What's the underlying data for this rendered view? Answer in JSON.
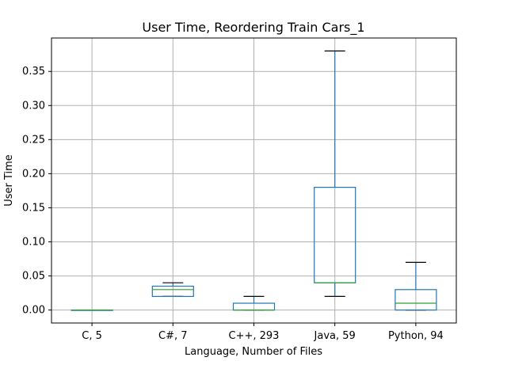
{
  "chart_data": {
    "type": "box",
    "title": "User Time, Reordering Train Cars_1",
    "xlabel": "Language, Number of Files",
    "ylabel": "User Time",
    "ylim": [
      -0.019,
      0.399
    ],
    "yticks": [
      "0.00",
      "0.05",
      "0.10",
      "0.15",
      "0.20",
      "0.25",
      "0.30",
      "0.35"
    ],
    "grid": true,
    "categories": [
      "C, 5",
      "C#, 7",
      "C++, 293",
      "Java, 59",
      "Python, 94"
    ],
    "boxes": [
      {
        "category": "C, 5",
        "whisker_low": 0.0,
        "q1": 0.0,
        "median": 0.0,
        "q3": 0.0,
        "whisker_high": 0.0
      },
      {
        "category": "C#, 7",
        "whisker_low": 0.02,
        "q1": 0.02,
        "median": 0.03,
        "q3": 0.035,
        "whisker_high": 0.04
      },
      {
        "category": "C++, 293",
        "whisker_low": 0.0,
        "q1": 0.0,
        "median": 0.0,
        "q3": 0.01,
        "whisker_high": 0.02
      },
      {
        "category": "Java, 59",
        "whisker_low": 0.02,
        "q1": 0.04,
        "median": 0.04,
        "q3": 0.18,
        "whisker_high": 0.38
      },
      {
        "category": "Python, 94",
        "whisker_low": 0.0,
        "q1": 0.0,
        "median": 0.01,
        "q3": 0.03,
        "whisker_high": 0.07
      }
    ],
    "colors": {
      "box": "#1f77b4",
      "median": "#2ca02c",
      "cap": "#000000",
      "grid": "#b0b0b0"
    }
  }
}
